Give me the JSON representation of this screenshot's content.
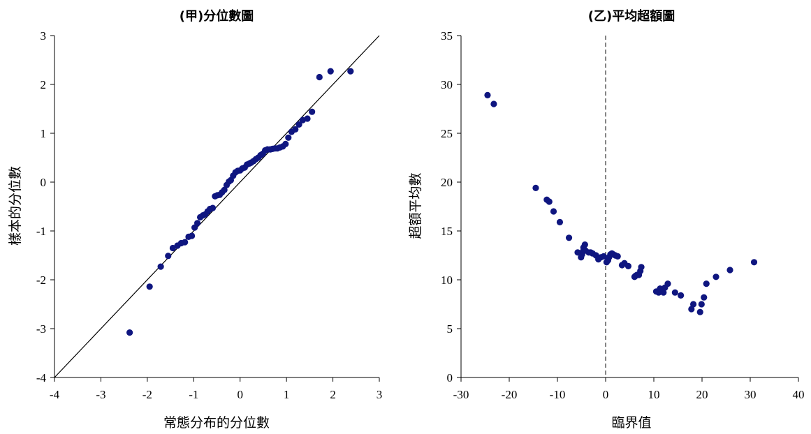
{
  "colors": {
    "marker": "#0f1680",
    "axis": "#000000",
    "reference_line": "#000000",
    "threshold_line": "#333333"
  },
  "chart_data": [
    {
      "type": "scatter",
      "title": "(甲)分位數圖",
      "xlabel": "常態分布的分位數",
      "ylabel": "樣本的分位數",
      "xlim": [
        -4,
        3
      ],
      "ylim": [
        -4,
        3
      ],
      "xticks": [
        -4,
        -3,
        -2,
        -1,
        0,
        1,
        2,
        3
      ],
      "yticks": [
        -4,
        -3,
        -2,
        -1,
        0,
        1,
        2,
        3
      ],
      "reference_line": {
        "kind": "y=x",
        "style": "solid"
      },
      "grid": false,
      "x": [
        -2.38,
        -1.95,
        -1.71,
        -1.55,
        -1.45,
        -1.35,
        -1.27,
        -1.19,
        -1.11,
        -1.04,
        -0.98,
        -0.92,
        -0.86,
        -0.8,
        -0.75,
        -0.7,
        -0.65,
        -0.59,
        -0.54,
        -0.49,
        -0.44,
        -0.39,
        -0.34,
        -0.29,
        -0.24,
        -0.2,
        -0.15,
        -0.1,
        -0.05,
        0.0,
        0.05,
        0.1,
        0.15,
        0.2,
        0.24,
        0.29,
        0.34,
        0.39,
        0.44,
        0.49,
        0.54,
        0.59,
        0.65,
        0.7,
        0.75,
        0.8,
        0.86,
        0.92,
        0.98,
        1.04,
        1.11,
        1.19,
        1.27,
        1.35,
        1.45,
        1.55,
        1.71,
        1.95,
        2.38
      ],
      "y": [
        -3.08,
        -2.14,
        -1.73,
        -1.51,
        -1.35,
        -1.3,
        -1.25,
        -1.23,
        -1.12,
        -1.1,
        -0.93,
        -0.84,
        -0.72,
        -0.68,
        -0.66,
        -0.6,
        -0.55,
        -0.53,
        -0.29,
        -0.27,
        -0.26,
        -0.21,
        -0.16,
        -0.06,
        0.01,
        0.04,
        0.13,
        0.2,
        0.23,
        0.24,
        0.28,
        0.3,
        0.36,
        0.38,
        0.4,
        0.43,
        0.47,
        0.5,
        0.55,
        0.58,
        0.65,
        0.67,
        0.67,
        0.68,
        0.69,
        0.69,
        0.71,
        0.73,
        0.78,
        0.91,
        1.03,
        1.08,
        1.18,
        1.27,
        1.3,
        1.44,
        2.15,
        2.27,
        2.27
      ]
    },
    {
      "type": "scatter",
      "title": "(乙)平均超額圖",
      "xlabel": "臨界值",
      "ylabel": "超額平均數",
      "xlim": [
        -30,
        40
      ],
      "ylim": [
        0,
        35
      ],
      "xticks": [
        -30,
        -20,
        -10,
        0,
        10,
        20,
        30,
        40
      ],
      "yticks": [
        0,
        5,
        10,
        15,
        20,
        25,
        30,
        35
      ],
      "threshold_line": {
        "x": 0,
        "style": "dashed"
      },
      "grid": false,
      "x": [
        -24.5,
        -23.2,
        -14.5,
        -12.2,
        -11.7,
        -10.8,
        -9.5,
        -7.6,
        -5.8,
        -5.1,
        -4.9,
        -4.7,
        -4.6,
        -4.3,
        -4.2,
        -3.5,
        -3.1,
        -2.7,
        -2.0,
        -1.5,
        -1.0,
        -0.4,
        0.2,
        0.5,
        0.7,
        1.0,
        1.3,
        1.6,
        2.0,
        2.5,
        3.4,
        3.9,
        4.7,
        6.0,
        6.2,
        6.5,
        6.9,
        7.2,
        7.4,
        10.5,
        11.0,
        11.3,
        12.0,
        12.3,
        12.9,
        14.4,
        15.6,
        17.8,
        18.2,
        19.6,
        19.9,
        20.4,
        20.9,
        22.9,
        25.8,
        30.8
      ],
      "y": [
        28.9,
        28.0,
        19.4,
        18.2,
        18.0,
        17.0,
        15.9,
        14.3,
        12.8,
        12.3,
        12.6,
        12.9,
        13.3,
        13.6,
        13.0,
        12.8,
        12.8,
        12.7,
        12.5,
        12.1,
        12.3,
        12.4,
        11.8,
        12.0,
        12.3,
        12.6,
        12.7,
        12.6,
        12.5,
        12.4,
        11.5,
        11.7,
        11.4,
        10.3,
        10.4,
        10.5,
        10.5,
        10.9,
        11.3,
        8.8,
        8.7,
        9.1,
        8.7,
        9.2,
        9.6,
        8.7,
        8.4,
        7.0,
        7.5,
        6.7,
        7.5,
        8.2,
        9.6,
        10.3,
        11.0,
        11.8
      ]
    }
  ]
}
